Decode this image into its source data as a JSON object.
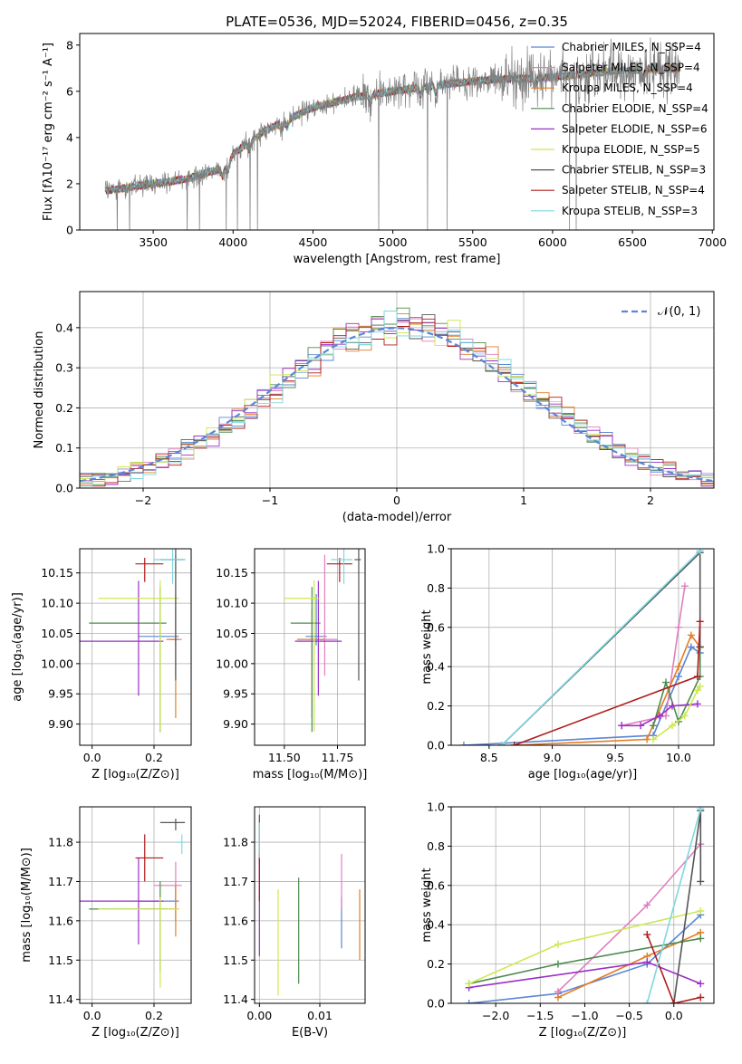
{
  "figure_title": "PLATE=0536, MJD=52024, FIBERID=0456, z=0.35",
  "colors": {
    "chabrier_miles": "#5b86d6",
    "salpeter_miles": "#e07fc0",
    "kroupa_miles": "#e57c24",
    "chabrier_elodie": "#4f8a4f",
    "salpeter_elodie": "#9b2fc7",
    "kroupa_elodie": "#cce84f",
    "chabrier_stelib": "#555555",
    "salpeter_stelib": "#b01b1b",
    "kroupa_stelib": "#7fd8e0",
    "data": "#808080",
    "normal": "#5b86d6"
  },
  "chart_data": [
    {
      "id": "spectrum",
      "type": "line",
      "xlabel": "wavelength [Angstrom, rest frame]",
      "ylabel": "Flux [fλ10⁻¹⁷ erg cm⁻² s⁻¹ A⁻¹]",
      "xlim": [
        3040,
        7010
      ],
      "ylim": [
        0,
        8.5
      ],
      "xticks": [
        "3500",
        "4000",
        "4500",
        "5000",
        "5500",
        "6000",
        "6500",
        "7000"
      ],
      "yticks": [
        "0",
        "2",
        "4",
        "6",
        "8"
      ],
      "data_range": [
        3200,
        6800
      ],
      "continuum": {
        "wavelength": [
          3200,
          3500,
          3700,
          3950,
          4000,
          4200,
          4500,
          4800,
          5000,
          5300,
          5600,
          6000,
          6400,
          6800
        ],
        "flux": [
          1.7,
          2.0,
          2.2,
          2.7,
          3.3,
          4.3,
          5.3,
          5.8,
          6.0,
          6.3,
          6.5,
          6.6,
          6.9,
          7.0
        ]
      },
      "legend": [
        {
          "label": "Chabrier MILES, N_SSP=4",
          "key": "chabrier_miles"
        },
        {
          "label": "Salpeter MILES, N_SSP=4",
          "key": "salpeter_miles"
        },
        {
          "label": "Kroupa MILES, N_SSP=4",
          "key": "kroupa_miles"
        },
        {
          "label": "Chabrier ELODIE, N_SSP=4",
          "key": "chabrier_elodie"
        },
        {
          "label": "Salpeter ELODIE, N_SSP=6",
          "key": "salpeter_elodie"
        },
        {
          "label": "Kroupa ELODIE, N_SSP=5",
          "key": "kroupa_elodie"
        },
        {
          "label": "Chabrier STELIB, N_SSP=3",
          "key": "chabrier_stelib"
        },
        {
          "label": "Salpeter STELIB, N_SSP=4",
          "key": "salpeter_stelib"
        },
        {
          "label": "Kroupa STELIB, N_SSP=3",
          "key": "kroupa_stelib"
        }
      ]
    },
    {
      "id": "residuals",
      "type": "line",
      "xlabel": "(data-model)/error",
      "ylabel": "Normed distribution",
      "xlim": [
        -2.5,
        2.5
      ],
      "ylim": [
        0,
        0.49
      ],
      "xticks": [
        "−2",
        "−1",
        "0",
        "1",
        "2"
      ],
      "yticks": [
        "0.0",
        "0.1",
        "0.2",
        "0.3",
        "0.4"
      ],
      "legend": "𝒩(0, 1)",
      "bin_width": 0.1
    },
    {
      "id": "age-vs-Z",
      "type": "scatter",
      "xlabel": "Z [log₁₀(Z/Z⊙)]",
      "ylabel": "age  [log₁₀(age/yr)]",
      "xlim": [
        -0.04,
        0.32
      ],
      "ylim": [
        9.865,
        10.19
      ],
      "xticks": [
        "0.0",
        "0.2"
      ],
      "yticks": [
        "9.90",
        "9.95",
        "10.00",
        "10.05",
        "10.10",
        "10.15"
      ]
    },
    {
      "id": "age-vs-mass",
      "type": "scatter",
      "xlabel": "mass [log₁₀(M/M⊙)]",
      "xlim": [
        11.36,
        11.88
      ],
      "ylim": [
        9.865,
        10.19
      ],
      "xticks": [
        "11.50",
        "11.75"
      ],
      "yticks": [
        "9.90",
        "9.95",
        "10.00",
        "10.05",
        "10.10",
        "10.15"
      ]
    },
    {
      "id": "massweight-vs-age",
      "type": "line",
      "xlabel": "age  [log₁₀(age/yr)]",
      "ylabel": "mass weight",
      "xlim": [
        8.2,
        10.28
      ],
      "ylim": [
        0,
        1.0
      ],
      "xticks": [
        "8.5",
        "9.0",
        "9.5",
        "10.0"
      ],
      "yticks": [
        "0.0",
        "0.2",
        "0.4",
        "0.6",
        "0.8",
        "1.0"
      ]
    },
    {
      "id": "mass-vs-Z",
      "type": "scatter",
      "xlabel": "Z [log₁₀(Z/Z⊙)]",
      "ylabel": "mass [log₁₀(M/M⊙)]",
      "xlim": [
        -0.04,
        0.32
      ],
      "ylim": [
        11.39,
        11.89
      ],
      "xticks": [
        "0.0",
        "0.2"
      ],
      "yticks": [
        "11.4",
        "11.5",
        "11.6",
        "11.7",
        "11.8"
      ]
    },
    {
      "id": "mass-vs-EBV",
      "type": "scatter",
      "xlabel": "E(B-V)",
      "xlim": [
        -0.0008,
        0.0175
      ],
      "ylim": [
        11.39,
        11.89
      ],
      "xticks": [
        "0.00",
        "0.01"
      ],
      "yticks": [
        "11.4",
        "11.5",
        "11.6",
        "11.7",
        "11.8"
      ]
    },
    {
      "id": "massweight-vs-Z",
      "type": "line",
      "xlabel": "Z [log₁₀(Z/Z⊙)]",
      "ylabel": "mass weight",
      "xlim": [
        -2.5,
        0.45
      ],
      "ylim": [
        0,
        1.0
      ],
      "xticks": [
        "−2.0",
        "−1.5",
        "−1.0",
        "−0.5",
        "0.0"
      ],
      "yticks": [
        "0.0",
        "0.2",
        "0.4",
        "0.6",
        "0.8",
        "1.0"
      ]
    }
  ],
  "errorbars": {
    "note": "cross markers: [x, xerr_low, xerr_high, y, yerr_low, yerr_high] per model key",
    "age_Z": {
      "chabrier_miles": [
        0.27,
        0.12,
        0.01,
        10.045,
        0.015,
        0.07
      ],
      "salpeter_miles": [
        0.27,
        0.02,
        0.02,
        10.04,
        0.06,
        0.14
      ],
      "kroupa_miles": [
        0.27,
        0.03,
        0.01,
        10.04,
        0.13,
        0.05
      ],
      "chabrier_elodie": [
        0.22,
        0.23,
        0.02,
        10.067,
        0.18,
        0.06
      ],
      "salpeter_elodie": [
        0.15,
        0.2,
        0.08,
        10.037,
        0.09,
        0.1
      ],
      "kroupa_elodie": [
        0.22,
        0.2,
        0.06,
        10.108,
        0.22,
        0.03
      ],
      "chabrier_stelib": [
        0.27,
        0.05,
        0.03,
        10.172,
        0.2,
        0.02
      ],
      "salpeter_stelib": [
        0.17,
        0.03,
        0.06,
        10.165,
        0.03,
        0.01
      ],
      "kroupa_stelib": [
        0.26,
        0.06,
        0.04,
        10.172,
        0.04,
        0.02
      ]
    },
    "age_mass": {
      "chabrier_miles": [
        11.65,
        0.05,
        0.05,
        10.045,
        0.015,
        0.07
      ],
      "salpeter_miles": [
        11.69,
        0.05,
        0.06,
        10.04,
        0.06,
        0.14
      ],
      "kroupa_miles": [
        11.63,
        0.07,
        0.06,
        10.04,
        0.13,
        0.05
      ],
      "chabrier_elodie": [
        11.63,
        0.1,
        0.04,
        10.067,
        0.18,
        0.06
      ],
      "salpeter_elodie": [
        11.66,
        0.11,
        0.11,
        10.037,
        0.09,
        0.1
      ],
      "kroupa_elodie": [
        11.64,
        0.14,
        0.03,
        10.108,
        0.22,
        0.03
      ],
      "chabrier_stelib": [
        11.85,
        0.02,
        0.01,
        10.172,
        0.2,
        0.02
      ],
      "salpeter_stelib": [
        11.76,
        0.06,
        0.06,
        10.165,
        0.03,
        0.01
      ],
      "kroupa_stelib": [
        11.78,
        0.06,
        0.04,
        10.172,
        0.04,
        0.02
      ]
    },
    "mass_Z": {
      "chabrier_miles": [
        0.27,
        0.12,
        0.01,
        11.65,
        0.05,
        0.05
      ],
      "salpeter_miles": [
        0.27,
        0.07,
        0.02,
        11.69,
        0.05,
        0.06
      ],
      "kroupa_miles": [
        0.27,
        0.1,
        0.01,
        11.63,
        0.07,
        0.06
      ],
      "chabrier_elodie": [
        0.22,
        0.23,
        0.02,
        11.63,
        0.16,
        0.07
      ],
      "salpeter_elodie": [
        0.15,
        0.2,
        0.08,
        11.65,
        0.11,
        0.11
      ],
      "kroupa_elodie": [
        0.22,
        0.2,
        0.06,
        11.63,
        0.2,
        0.03
      ],
      "chabrier_stelib": [
        0.27,
        0.05,
        0.03,
        11.85,
        0.02,
        0.01
      ],
      "salpeter_stelib": [
        0.17,
        0.03,
        0.06,
        11.76,
        0.06,
        0.06
      ],
      "kroupa_stelib": [
        0.29,
        0.02,
        0.01,
        11.8,
        0.03,
        0.02
      ]
    },
    "mass_EBV": {
      "chabrier_miles": [
        0.0136,
        0,
        0,
        11.65,
        0.12,
        0.01
      ],
      "salpeter_miles": [
        0.0136,
        0,
        0,
        11.69,
        0.06,
        0.08
      ],
      "kroupa_miles": [
        0.0166,
        0,
        0,
        11.63,
        0.13,
        0.05
      ],
      "chabrier_elodie": [
        0.0065,
        0,
        0,
        11.63,
        0.19,
        0.08
      ],
      "salpeter_elodie": [
        0.0,
        0,
        0,
        11.65,
        0.14,
        0.12
      ],
      "kroupa_elodie": [
        0.0031,
        0,
        0,
        11.6,
        0.19,
        0.08
      ],
      "chabrier_stelib": [
        0.0,
        0,
        0,
        11.85,
        0.09,
        0.02
      ],
      "salpeter_stelib": [
        0.0,
        0,
        0,
        11.7,
        0.05,
        0.07
      ],
      "kroupa_stelib": [
        0.0,
        0,
        0,
        11.8,
        0.04,
        0.05
      ]
    }
  },
  "weights_age": {
    "chabrier_miles": [
      [
        8.3,
        0.0
      ],
      [
        9.8,
        0.05
      ],
      [
        10.0,
        0.35
      ],
      [
        10.1,
        0.5
      ],
      [
        10.17,
        0.47
      ]
    ],
    "salpeter_miles": [
      [
        9.55,
        0.1
      ],
      [
        9.9,
        0.15
      ],
      [
        10.0,
        0.6
      ],
      [
        10.05,
        0.81
      ]
    ],
    "kroupa_miles": [
      [
        8.7,
        0.0
      ],
      [
        9.75,
        0.03
      ],
      [
        10.0,
        0.4
      ],
      [
        10.1,
        0.56
      ],
      [
        10.17,
        0.5
      ]
    ],
    "chabrier_elodie": [
      [
        9.8,
        0.1
      ],
      [
        9.9,
        0.32
      ],
      [
        10.0,
        0.12
      ],
      [
        10.17,
        0.35
      ],
      [
        10.17,
        0.5
      ]
    ],
    "salpeter_elodie": [
      [
        9.55,
        0.1
      ],
      [
        9.7,
        0.1
      ],
      [
        9.85,
        0.15
      ],
      [
        9.95,
        0.2
      ],
      [
        10.15,
        0.21
      ]
    ],
    "kroupa_elodie": [
      [
        9.8,
        0.03
      ],
      [
        9.95,
        0.1
      ],
      [
        10.05,
        0.15
      ],
      [
        10.15,
        0.28
      ],
      [
        10.17,
        0.3
      ]
    ],
    "chabrier_stelib": [
      [
        8.6,
        0.0
      ],
      [
        10.17,
        0.98
      ],
      [
        10.17,
        0.5
      ]
    ],
    "salpeter_stelib": [
      [
        8.7,
        0.0
      ],
      [
        10.15,
        0.35
      ],
      [
        10.17,
        0.63
      ]
    ],
    "kroupa_stelib": [
      [
        8.6,
        0.0
      ],
      [
        10.17,
        0.99
      ]
    ]
  },
  "weights_Z": {
    "chabrier_miles": [
      [
        -2.3,
        0.0
      ],
      [
        -1.3,
        0.05
      ],
      [
        -0.3,
        0.2
      ],
      [
        0.3,
        0.45
      ]
    ],
    "salpeter_miles": [
      [
        -1.3,
        0.06
      ],
      [
        -0.3,
        0.5
      ],
      [
        0.3,
        0.81
      ]
    ],
    "kroupa_miles": [
      [
        -1.3,
        0.03
      ],
      [
        -0.3,
        0.24
      ],
      [
        0.3,
        0.36
      ]
    ],
    "chabrier_elodie": [
      [
        -2.3,
        0.1
      ],
      [
        -1.3,
        0.2
      ],
      [
        0.3,
        0.33
      ]
    ],
    "salpeter_elodie": [
      [
        -2.3,
        0.08
      ],
      [
        -0.3,
        0.21
      ],
      [
        0.3,
        0.1
      ]
    ],
    "kroupa_elodie": [
      [
        -2.3,
        0.1
      ],
      [
        -1.3,
        0.3
      ],
      [
        0.3,
        0.47
      ]
    ],
    "chabrier_stelib": [
      [
        0.0,
        0.0
      ],
      [
        0.3,
        0.98
      ],
      [
        0.3,
        0.62
      ]
    ],
    "salpeter_stelib": [
      [
        -0.3,
        0.35
      ],
      [
        0.0,
        0.0
      ],
      [
        0.3,
        0.03
      ]
    ],
    "kroupa_stelib": [
      [
        -0.3,
        0.0
      ],
      [
        0.3,
        0.99
      ]
    ]
  }
}
